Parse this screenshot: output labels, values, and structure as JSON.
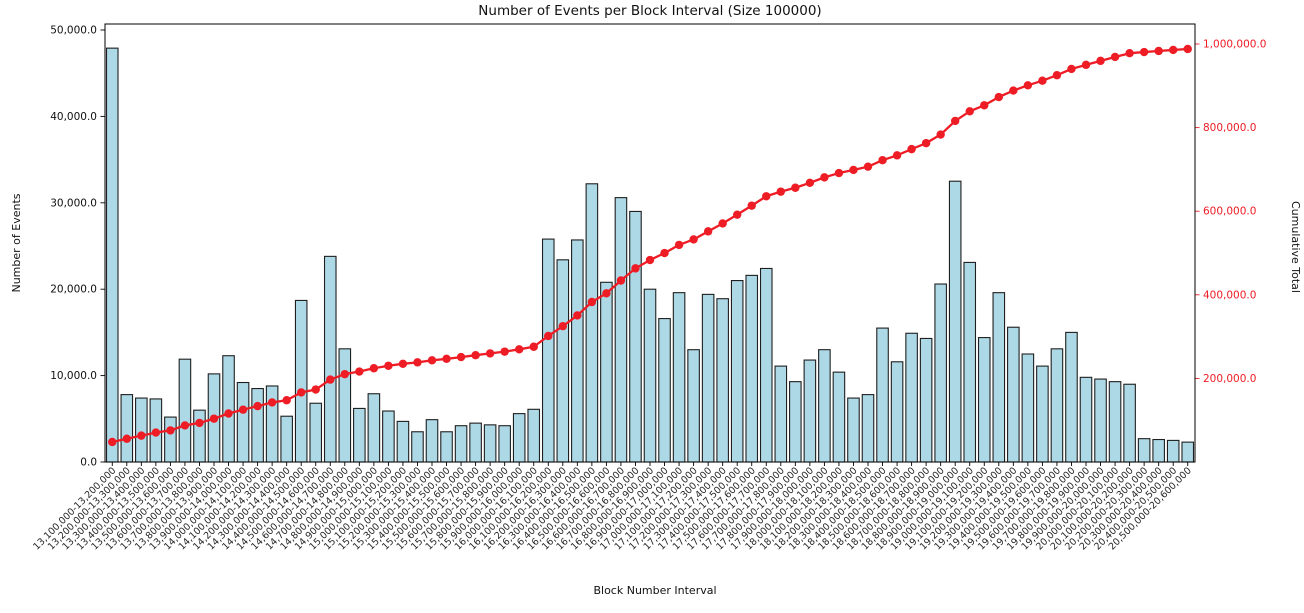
{
  "chart_data": {
    "type": "bar",
    "combo": "bar+line",
    "title": "Number of Events per Block Interval (Size 100000)",
    "xlabel": "Block Number Interval",
    "ylabel_left": "Number of Events",
    "ylabel_right": "Cumulative Total",
    "grid": false,
    "legend_position": "none",
    "categories": [
      "13,100,000-13,200,000",
      "13,200,000-13,300,000",
      "13,300,000-13,400,000",
      "13,400,000-13,500,000",
      "13,500,000-13,600,000",
      "13,600,000-13,700,000",
      "13,700,000-13,800,000",
      "13,800,000-13,900,000",
      "13,900,000-14,000,000",
      "14,000,000-14,100,000",
      "14,100,000-14,200,000",
      "14,200,000-14,300,000",
      "14,300,000-14,400,000",
      "14,400,000-14,500,000",
      "14,500,000-14,600,000",
      "14,600,000-14,700,000",
      "14,700,000-14,800,000",
      "14,800,000-14,900,000",
      "14,900,000-15,000,000",
      "15,000,000-15,100,000",
      "15,100,000-15,200,000",
      "15,200,000-15,300,000",
      "15,300,000-15,400,000",
      "15,400,000-15,500,000",
      "15,500,000-15,600,000",
      "15,600,000-15,700,000",
      "15,700,000-15,800,000",
      "15,800,000-15,900,000",
      "15,900,000-16,000,000",
      "16,000,000-16,100,000",
      "16,100,000-16,200,000",
      "16,200,000-16,300,000",
      "16,300,000-16,400,000",
      "16,400,000-16,500,000",
      "16,500,000-16,600,000",
      "16,600,000-16,700,000",
      "16,700,000-16,800,000",
      "16,800,000-16,900,000",
      "16,900,000-17,000,000",
      "17,000,000-17,100,000",
      "17,100,000-17,200,000",
      "17,200,000-17,300,000",
      "17,300,000-17,400,000",
      "17,400,000-17,500,000",
      "17,500,000-17,600,000",
      "17,600,000-17,700,000",
      "17,700,000-17,800,000",
      "17,800,000-17,900,000",
      "17,900,000-18,000,000",
      "18,000,000-18,100,000",
      "18,100,000-18,200,000",
      "18,200,000-18,300,000",
      "18,300,000-18,400,000",
      "18,400,000-18,500,000",
      "18,500,000-18,600,000",
      "18,600,000-18,700,000",
      "18,700,000-18,800,000",
      "18,800,000-18,900,000",
      "18,900,000-19,000,000",
      "19,000,000-19,100,000",
      "19,100,000-19,200,000",
      "19,200,000-19,300,000",
      "19,300,000-19,400,000",
      "19,400,000-19,500,000",
      "19,500,000-19,600,000",
      "19,600,000-19,700,000",
      "19,700,000-19,800,000",
      "19,800,000-19,900,000",
      "19,900,000-20,000,000",
      "20,000,000-20,100,000",
      "20,100,000-20,200,000",
      "20,200,000-20,300,000",
      "20,300,000-20,400,000",
      "20,400,000-20,500,000",
      "20,500,000-20,600,000"
    ],
    "series": [
      {
        "name": "Number of Events",
        "type": "bar",
        "values": [
          47900,
          7800,
          7400,
          7300,
          5200,
          11900,
          6000,
          10200,
          12300,
          9200,
          8500,
          8800,
          5300,
          18700,
          6800,
          23800,
          13100,
          6200,
          7900,
          5900,
          4700,
          3500,
          4900,
          3500,
          4200,
          4500,
          4300,
          4200,
          5600,
          6100,
          25800,
          23400,
          25700,
          32200,
          20800,
          30600,
          29000,
          20000,
          16600,
          19600,
          13000,
          19400,
          18900,
          21000,
          21600,
          22400,
          11100,
          9300,
          11800,
          13000,
          10400,
          7400,
          7800,
          15500,
          11600,
          14900,
          14300,
          20600,
          32500,
          23100,
          14400,
          19600,
          15600,
          12500,
          11100,
          13100,
          15000,
          9800,
          9600,
          9300,
          9000,
          2700,
          2600,
          2500,
          2300
        ]
      },
      {
        "name": "Cumulative Total",
        "type": "line",
        "values": [
          47900,
          55700,
          63100,
          70400,
          75600,
          87500,
          93500,
          103700,
          116000,
          125200,
          133700,
          142500,
          147800,
          166500,
          173300,
          197100,
          210200,
          216400,
          224300,
          230200,
          234900,
          238400,
          243300,
          246800,
          251000,
          255500,
          259800,
          264000,
          269600,
          275700,
          301500,
          324900,
          350600,
          382800,
          403600,
          434200,
          463200,
          483200,
          499800,
          519400,
          532400,
          551800,
          570700,
          591700,
          613300,
          635700,
          646800,
          656100,
          667900,
          680900,
          691300,
          698700,
          706500,
          722000,
          733600,
          748500,
          762800,
          783400,
          815900,
          839000,
          853400,
          873000,
          888600,
          901100,
          912200,
          925300,
          940300,
          950100,
          959700,
          969000,
          978000,
          980700,
          983300,
          985800,
          988100
        ]
      }
    ],
    "y_left_axis": {
      "min": 0,
      "max": 50000,
      "ticks": [
        {
          "value": 0,
          "label": "0.0"
        },
        {
          "value": 10000,
          "label": "10,000.0"
        },
        {
          "value": 20000,
          "label": "20,000.0"
        },
        {
          "value": 30000,
          "label": "30,000.0"
        },
        {
          "value": 40000,
          "label": "40,000.0"
        },
        {
          "value": 50000,
          "label": "50,000.0"
        }
      ]
    },
    "y_right_axis": {
      "min": 0,
      "max": 1047000,
      "ticks": [
        {
          "value": 200000,
          "label": "200,000.0"
        },
        {
          "value": 400000,
          "label": "400,000.0"
        },
        {
          "value": 600000,
          "label": "600,000.0"
        },
        {
          "value": 800000,
          "label": "800,000.0"
        },
        {
          "value": 1000000,
          "label": "1,000,000.0"
        }
      ]
    }
  },
  "style": {
    "bar_fill": "#add8e6",
    "bar_edge": "#1f1f1f",
    "line_color": "#ee1c25",
    "right_axis_text_color": "#ee1c25",
    "axis_color": "#000000",
    "x_tick_text_color": "#262626"
  }
}
